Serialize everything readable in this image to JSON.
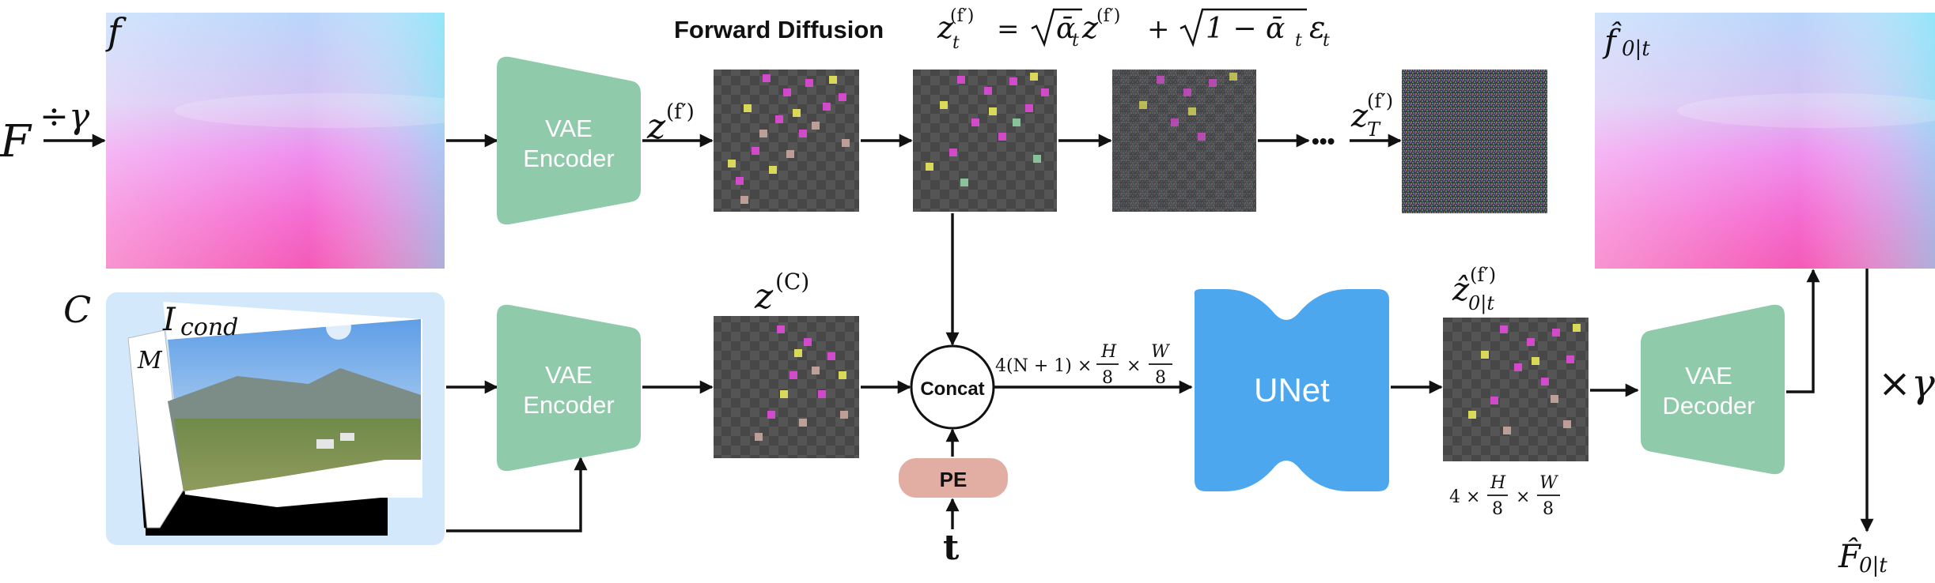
{
  "title": {
    "label": "Forward Diffusion",
    "lhs": "z",
    "lhs_sub": "t",
    "lhs_sup": "(f′)",
    "equals": "=",
    "sqrt1_var": "ᾱ",
    "sqrt1_sub": "t",
    "z_var": "z",
    "z_sup": "(f′)",
    "plus": "+",
    "sqrt2_body": "1 − ᾱ",
    "sqrt2_sub": "t",
    "eps": "ε",
    "eps_sub": "t"
  },
  "labels": {
    "F": "F",
    "divide_gamma": "÷γ",
    "f": "f",
    "C": "C",
    "I": "I",
    "I_sub": "cond",
    "M": "M",
    "z_f": "z",
    "z_f_sup": "(f′)",
    "z_c": "z",
    "z_c_sup": "(C)",
    "dots": "•••",
    "zT": "z",
    "zT_sub": "T",
    "zT_sup": "(f′)",
    "zhat": "ẑ",
    "zhat_sub": "0|t",
    "zhat_sup": "(f′)",
    "fhat": "f̂",
    "fhat_sub": "0|t",
    "times_gamma": "×γ",
    "Fhat": "F̂",
    "Fhat_sub": "0|t",
    "t": "t",
    "concat_dim": {
      "prefix": "4(N + 1) ×",
      "h_num": "H",
      "den": "8",
      "times": "×",
      "w_num": "W"
    },
    "out_dim": {
      "prefix": "4 ×",
      "h_num": "H",
      "den": "8",
      "times": "×",
      "w_num": "W"
    }
  },
  "blocks": {
    "encoder1_l1": "VAE",
    "encoder1_l2": "Encoder",
    "encoder2_l1": "VAE",
    "encoder2_l2": "Encoder",
    "decoder_l1": "VAE",
    "decoder_l2": "Decoder",
    "concat": "Concat",
    "pe": "PE",
    "unet": "UNet"
  },
  "colors": {
    "vae": "#8fcaaa",
    "unet": "#4da7ee",
    "pe": "#e2ada2",
    "cond_bg": "#d3e9fb",
    "latent_bg": "#4b4b4b"
  }
}
